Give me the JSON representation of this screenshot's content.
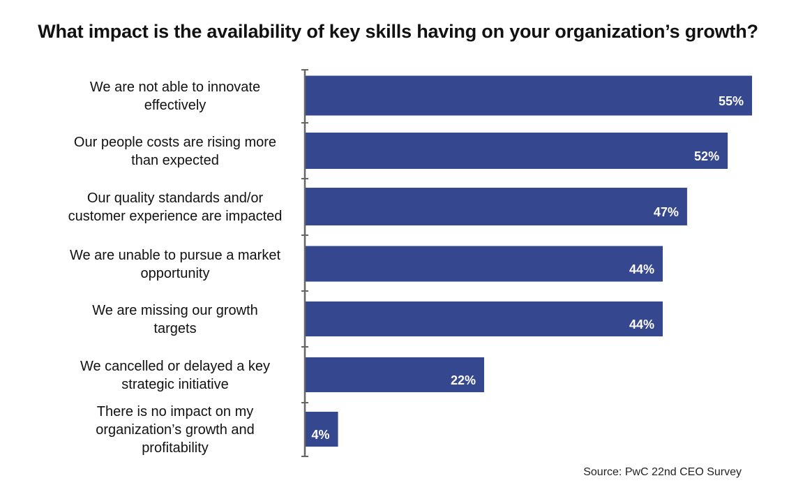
{
  "chart_data": {
    "type": "bar",
    "orientation": "horizontal",
    "title": "What impact is the availability of key skills having on your organization’s growth?",
    "categories": [
      "We are not able to innovate effectively",
      "Our people costs are rising more than expected",
      "Our quality standards and/or customer experience are impacted",
      "We are unable to pursue a market opportunity",
      "We are missing our growth targets",
      "We cancelled or delayed a key strategic initiative",
      "There is no impact on my organization’s growth and profitability"
    ],
    "category_lines": [
      [
        "We are not able to innovate",
        "effectively"
      ],
      [
        "Our people costs are rising more",
        "than expected"
      ],
      [
        "Our quality standards and/or",
        "customer experience are impacted"
      ],
      [
        "We are unable to pursue a market",
        "opportunity"
      ],
      [
        "We are missing our growth",
        "targets"
      ],
      [
        "We cancelled or delayed a key",
        "strategic initiative"
      ],
      [
        "There is no impact on my",
        "organization’s growth and",
        "profitability"
      ]
    ],
    "values": [
      55,
      52,
      47,
      44,
      44,
      22,
      4
    ],
    "value_labels": [
      "55%",
      "52%",
      "47%",
      "44%",
      "44%",
      "22%",
      "4%"
    ],
    "bar_color": "#35478f",
    "xlim": [
      0,
      55
    ],
    "grid": false,
    "legend": "none"
  },
  "source": "Source: PwC 22nd CEO Survey"
}
